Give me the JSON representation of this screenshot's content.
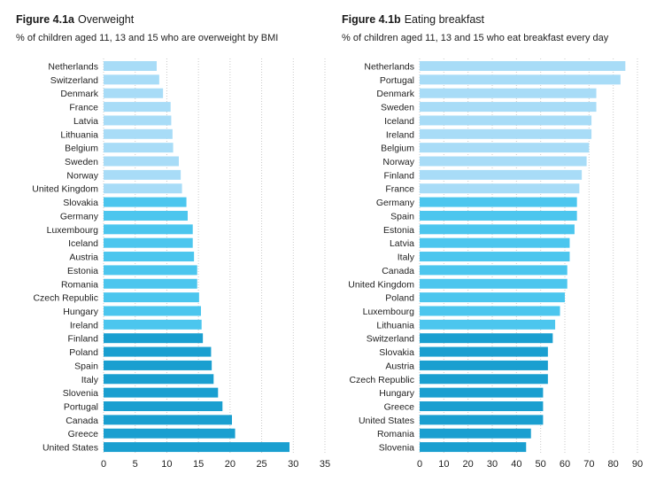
{
  "colors": {
    "light": "#a8dcf7",
    "mid": "#4cc6ee",
    "dark": "#1a9fd0",
    "grid": "#c9c9c9"
  },
  "chart_data": [
    {
      "type": "bar",
      "orientation": "horizontal",
      "figure_label": "Figure 4.1a",
      "title": "Overweight",
      "subtitle": "% of children aged 11, 13 and 15 who are overweight by BMI",
      "xlim": [
        0,
        35
      ],
      "xticks": [
        0,
        5,
        10,
        15,
        20,
        25,
        30,
        35
      ],
      "grid": "vertical dotted",
      "categories": [
        "Netherlands",
        "Switzerland",
        "Denmark",
        "France",
        "Latvia",
        "Lithuania",
        "Belgium",
        "Sweden",
        "Norway",
        "United Kingdom",
        "Slovakia",
        "Germany",
        "Luxembourg",
        "Iceland",
        "Austria",
        "Estonia",
        "Romania",
        "Czech Republic",
        "Hungary",
        "Ireland",
        "Finland",
        "Poland",
        "Spain",
        "Italy",
        "Slovenia",
        "Portugal",
        "Canada",
        "Greece",
        "United States"
      ],
      "values": [
        8.4,
        8.8,
        9.4,
        10.6,
        10.7,
        10.9,
        11.0,
        11.9,
        12.2,
        12.4,
        13.1,
        13.3,
        14.1,
        14.1,
        14.3,
        14.8,
        14.8,
        15.1,
        15.4,
        15.5,
        15.7,
        17.0,
        17.1,
        17.4,
        18.1,
        18.8,
        20.3,
        20.8,
        29.4
      ],
      "color_groups": [
        "light",
        "light",
        "light",
        "light",
        "light",
        "light",
        "light",
        "light",
        "light",
        "light",
        "mid",
        "mid",
        "mid",
        "mid",
        "mid",
        "mid",
        "mid",
        "mid",
        "mid",
        "mid",
        "dark",
        "dark",
        "dark",
        "dark",
        "dark",
        "dark",
        "dark",
        "dark",
        "dark"
      ]
    },
    {
      "type": "bar",
      "orientation": "horizontal",
      "figure_label": "Figure 4.1b",
      "title": "Eating breakfast",
      "subtitle": "% of children aged 11, 13 and 15 who eat breakfast every day",
      "xlim": [
        0,
        90
      ],
      "xticks": [
        0,
        10,
        20,
        30,
        40,
        50,
        60,
        70,
        80,
        90
      ],
      "grid": "vertical dotted",
      "categories": [
        "Netherlands",
        "Portugal",
        "Denmark",
        "Sweden",
        "Iceland",
        "Ireland",
        "Belgium",
        "Norway",
        "Finland",
        "France",
        "Germany",
        "Spain",
        "Estonia",
        "Latvia",
        "Italy",
        "Canada",
        "United Kingdom",
        "Poland",
        "Luxembourg",
        "Lithuania",
        "Switzerland",
        "Slovakia",
        "Austria",
        "Czech Republic",
        "Hungary",
        "Greece",
        "United States",
        "Romania",
        "Slovenia"
      ],
      "values": [
        85,
        83,
        73,
        73,
        71,
        71,
        70,
        69,
        67,
        66,
        65,
        65,
        64,
        62,
        62,
        61,
        61,
        60,
        58,
        56,
        55,
        53,
        53,
        53,
        51,
        51,
        51,
        46,
        44
      ],
      "color_groups": [
        "light",
        "light",
        "light",
        "light",
        "light",
        "light",
        "light",
        "light",
        "light",
        "light",
        "mid",
        "mid",
        "mid",
        "mid",
        "mid",
        "mid",
        "mid",
        "mid",
        "mid",
        "mid",
        "dark",
        "dark",
        "dark",
        "dark",
        "dark",
        "dark",
        "dark",
        "dark",
        "dark"
      ]
    }
  ]
}
